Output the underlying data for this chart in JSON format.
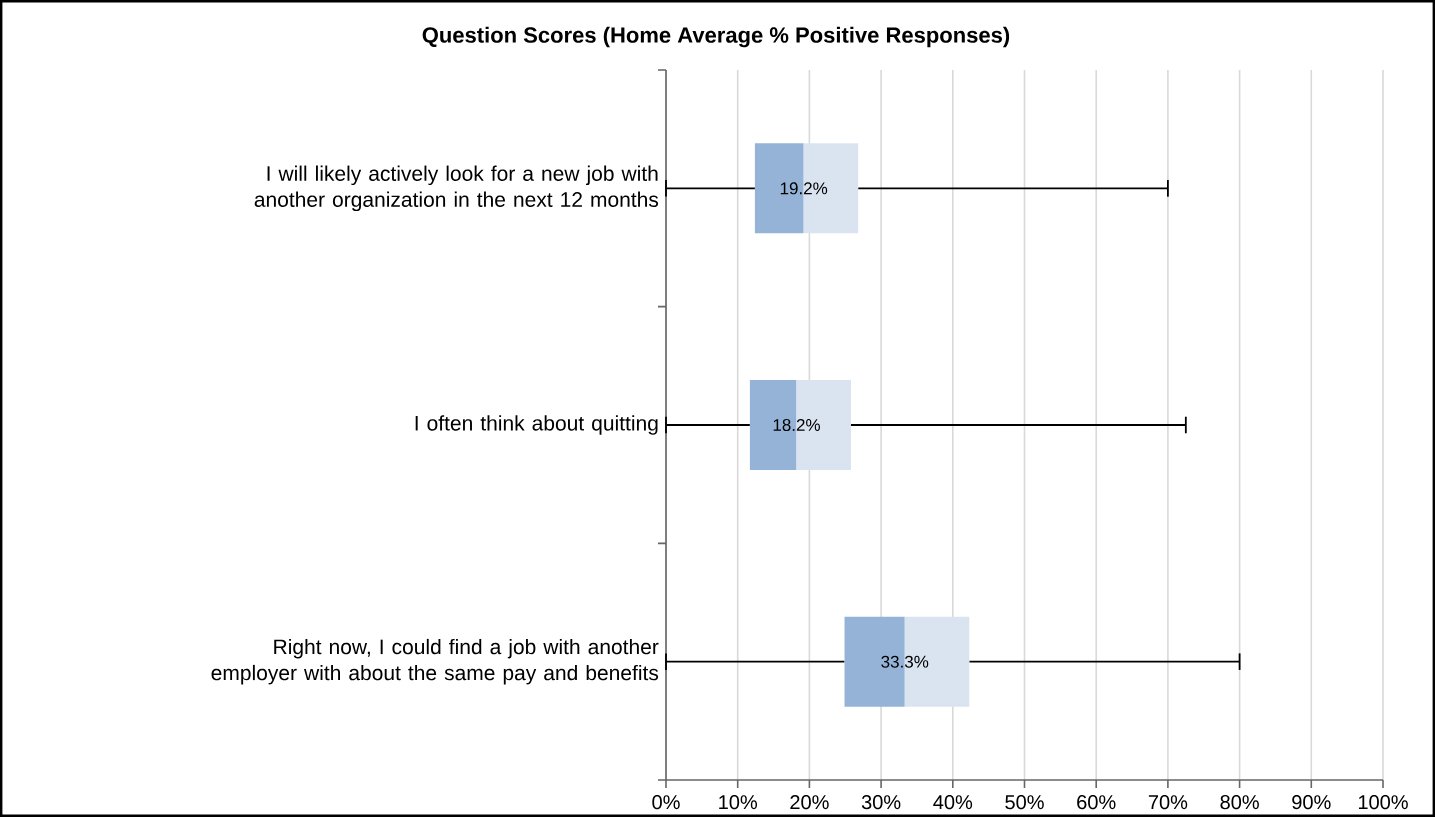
{
  "chart_data": {
    "type": "box",
    "title": "Question Scores (Home Average % Positive Responses)",
    "orientation": "horizontal",
    "categories": [
      "I will likely actively look for a new job with another organization in the next 12 months",
      "I often think about quitting",
      "Right now, I could find a job with another employer with about the same pay and benefits"
    ],
    "boxes": [
      {
        "low": 0,
        "q1": 12.4,
        "median": 19.2,
        "q3": 26.8,
        "high": 70
      },
      {
        "low": 0,
        "q1": 11.7,
        "median": 18.2,
        "q3": 25.8,
        "high": 72.5
      },
      {
        "low": 0,
        "q1": 24.9,
        "median": 33.3,
        "q3": 42.3,
        "high": 80
      }
    ],
    "color": "#95b3d7",
    "annotations": [
      {
        "text": "19.2%",
        "x": 19.2,
        "y": "I will likely actively look for a new job with another organization in the next 12 months"
      },
      {
        "text": "18.2%",
        "x": 18.2,
        "y": "I often think about quitting"
      },
      {
        "text": "33.3%",
        "x": 33.3,
        "y": "Right now, I could find a job with another employer with about the same pay and benefits"
      }
    ],
    "xlim": [
      0,
      100
    ],
    "xticks": [
      {
        "value": 0,
        "label": "0%"
      },
      {
        "value": 10,
        "label": "10%"
      },
      {
        "value": 20,
        "label": "20%"
      },
      {
        "value": 30,
        "label": "30%"
      },
      {
        "value": 40,
        "label": "40%"
      },
      {
        "value": 50,
        "label": "50%"
      },
      {
        "value": 60,
        "label": "60%"
      },
      {
        "value": 70,
        "label": "70%"
      },
      {
        "value": 80,
        "label": "80%"
      },
      {
        "value": 90,
        "label": "90%"
      },
      {
        "value": 100,
        "label": "100%"
      }
    ],
    "grid": "x"
  }
}
